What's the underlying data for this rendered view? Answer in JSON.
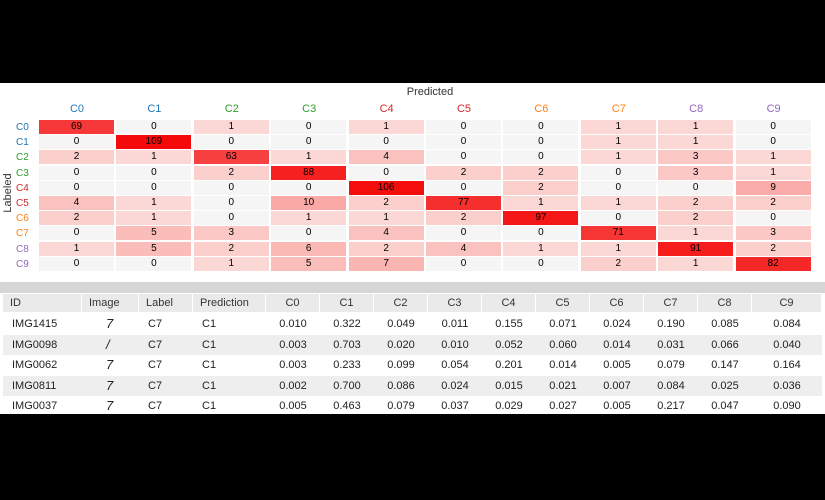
{
  "confusion_matrix": {
    "title": "Predicted",
    "ylabel": "Labeled",
    "classes": [
      {
        "label": "C0",
        "color": "#1f77b4"
      },
      {
        "label": "C1",
        "color": "#1f77b4"
      },
      {
        "label": "C2",
        "color": "#2ca02c"
      },
      {
        "label": "C3",
        "color": "#2ca02c"
      },
      {
        "label": "C4",
        "color": "#d62728"
      },
      {
        "label": "C5",
        "color": "#d62728"
      },
      {
        "label": "C6",
        "color": "#ff7f0e"
      },
      {
        "label": "C7",
        "color": "#ff7f0e"
      },
      {
        "label": "C8",
        "color": "#9467bd"
      },
      {
        "label": "C9",
        "color": "#9467bd"
      }
    ],
    "values": [
      [
        69,
        0,
        1,
        0,
        1,
        0,
        0,
        1,
        1,
        0
      ],
      [
        0,
        109,
        0,
        0,
        0,
        0,
        0,
        1,
        1,
        0
      ],
      [
        2,
        1,
        63,
        1,
        4,
        0,
        0,
        1,
        3,
        1
      ],
      [
        0,
        0,
        2,
        88,
        0,
        2,
        2,
        0,
        3,
        1
      ],
      [
        0,
        0,
        0,
        0,
        106,
        0,
        2,
        0,
        0,
        9
      ],
      [
        4,
        1,
        0,
        10,
        2,
        77,
        1,
        1,
        2,
        2
      ],
      [
        2,
        1,
        0,
        1,
        1,
        2,
        97,
        0,
        2,
        0
      ],
      [
        0,
        5,
        3,
        0,
        4,
        0,
        0,
        71,
        1,
        3
      ],
      [
        1,
        5,
        2,
        6,
        2,
        4,
        1,
        1,
        91,
        2
      ],
      [
        0,
        0,
        1,
        5,
        7,
        0,
        0,
        2,
        1,
        82
      ]
    ]
  },
  "results_table": {
    "columns": [
      "ID",
      "Image",
      "Label",
      "Prediction",
      "C0",
      "C1",
      "C2",
      "C3",
      "C4",
      "C5",
      "C6",
      "C7",
      "C8",
      "C9"
    ],
    "rows": [
      {
        "id": "IMG1415",
        "image_glyph": "7",
        "label": "C7",
        "prediction": "C1",
        "probs": [
          "0.010",
          "0.322",
          "0.049",
          "0.011",
          "0.155",
          "0.071",
          "0.024",
          "0.190",
          "0.085",
          "0.084"
        ]
      },
      {
        "id": "IMG0098",
        "image_glyph": "/",
        "label": "C7",
        "prediction": "C1",
        "probs": [
          "0.003",
          "0.703",
          "0.020",
          "0.010",
          "0.052",
          "0.060",
          "0.014",
          "0.031",
          "0.066",
          "0.040"
        ]
      },
      {
        "id": "IMG0062",
        "image_glyph": "7",
        "label": "C7",
        "prediction": "C1",
        "probs": [
          "0.003",
          "0.233",
          "0.099",
          "0.054",
          "0.201",
          "0.014",
          "0.005",
          "0.079",
          "0.147",
          "0.164"
        ]
      },
      {
        "id": "IMG0811",
        "image_glyph": "7",
        "label": "C7",
        "prediction": "C1",
        "probs": [
          "0.002",
          "0.700",
          "0.086",
          "0.024",
          "0.015",
          "0.021",
          "0.007",
          "0.084",
          "0.025",
          "0.036"
        ]
      },
      {
        "id": "IMG0037",
        "image_glyph": "7",
        "label": "C7",
        "prediction": "C1",
        "probs": [
          "0.005",
          "0.463",
          "0.079",
          "0.037",
          "0.029",
          "0.027",
          "0.005",
          "0.217",
          "0.047",
          "0.090"
        ]
      }
    ]
  }
}
